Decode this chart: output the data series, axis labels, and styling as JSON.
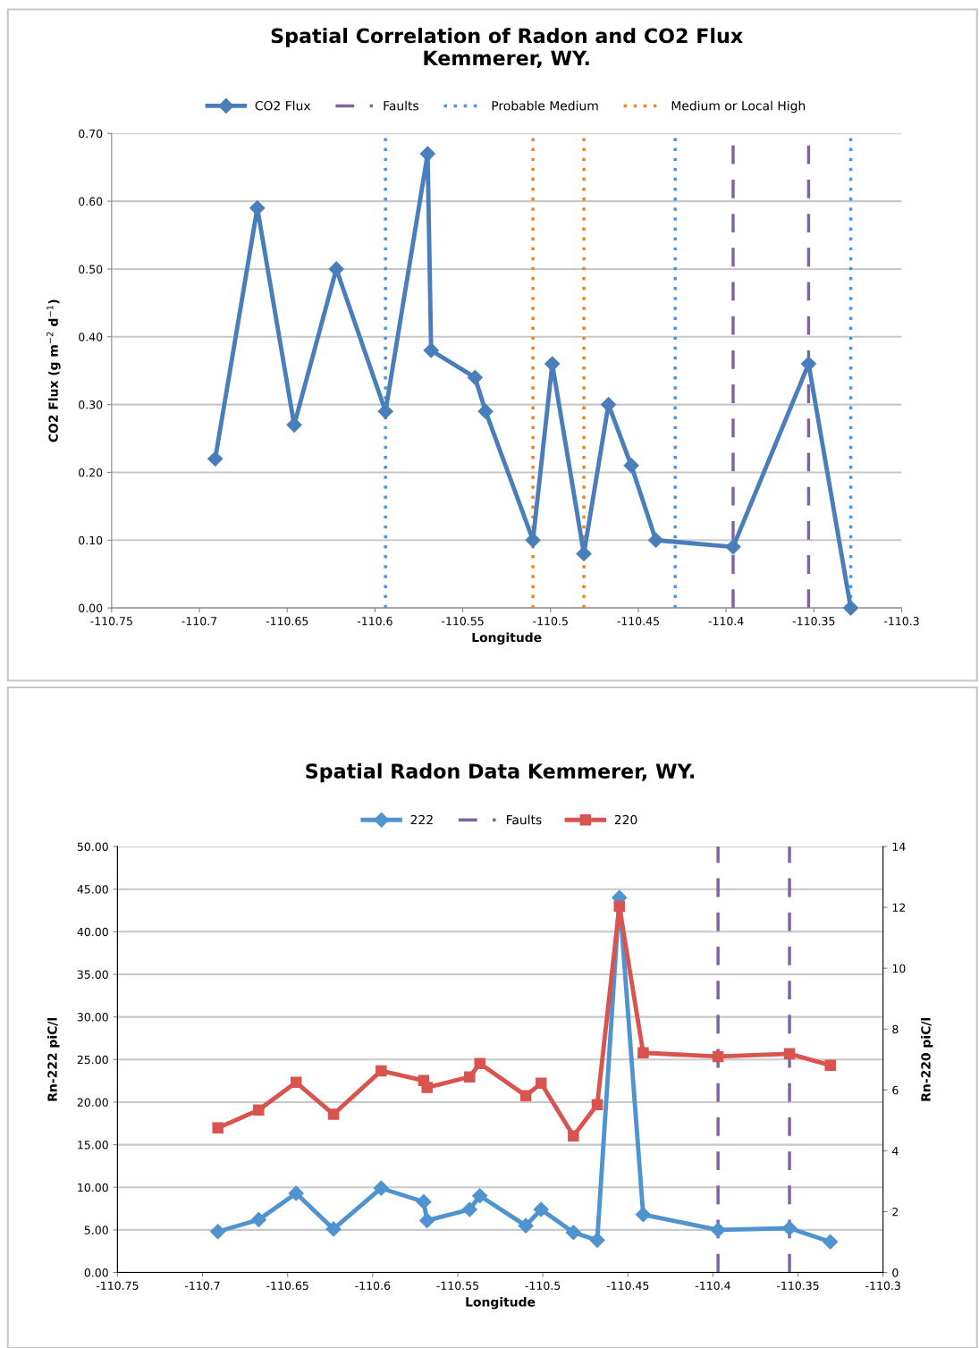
{
  "chart_data": [
    {
      "type": "line",
      "title": "Spatial Correlation of Radon and CO2 Flux\nKemmerer, WY.",
      "xlabel": "Longitude",
      "ylabel": "CO2 Flux (g m$^{−2}$ d$^{−1}$)",
      "x": [
        -110.691,
        -110.667,
        -110.646,
        -110.622,
        -110.594,
        -110.57,
        -110.568,
        -110.543,
        -110.537,
        -110.51,
        -110.499,
        -110.481,
        -110.467,
        -110.454,
        -110.44,
        -110.396,
        -110.353,
        -110.329
      ],
      "series": [
        {
          "name": "CO2 Flux",
          "color": "#4a7ebb",
          "marker": "diamond",
          "values": [
            0.22,
            0.59,
            0.27,
            0.5,
            0.29,
            0.67,
            0.38,
            0.34,
            0.29,
            0.1,
            0.36,
            0.08,
            0.3,
            0.21,
            0.1,
            0.09,
            0.36,
            0.0
          ]
        }
      ],
      "ref_lines": [
        {
          "axis": "x",
          "value": -110.396,
          "label": "Faults",
          "color": "#8064a2",
          "line_style": "dashed"
        },
        {
          "axis": "x",
          "value": -110.353,
          "color": "#8064a2",
          "line_style": "dashed"
        },
        {
          "axis": "x",
          "value": -110.594,
          "label": "Probable Medium",
          "color": "#4f93e0",
          "line_style": "dotted"
        },
        {
          "axis": "x",
          "value": -110.429,
          "color": "#4f93e0",
          "line_style": "dotted"
        },
        {
          "axis": "x",
          "value": -110.329,
          "color": "#4f93e0",
          "line_style": "dotted"
        },
        {
          "axis": "x",
          "value": -110.51,
          "label": "Medium or Local High",
          "color": "#f58220",
          "line_style": "dotted"
        },
        {
          "axis": "x",
          "value": -110.481,
          "color": "#f58220",
          "line_style": "dotted"
        }
      ],
      "xlim": [
        -110.75,
        -110.3
      ],
      "xticks": [
        {
          "value": -110.75,
          "label": "-110.75"
        },
        {
          "value": -110.7,
          "label": "-110.7"
        },
        {
          "value": -110.65,
          "label": "-110.65"
        },
        {
          "value": -110.6,
          "label": "-110.6"
        },
        {
          "value": -110.55,
          "label": "-110.55"
        },
        {
          "value": -110.5,
          "label": "-110.5"
        },
        {
          "value": -110.45,
          "label": "-110.45"
        },
        {
          "value": -110.4,
          "label": "-110.4"
        },
        {
          "value": -110.35,
          "label": "-110.35"
        },
        {
          "value": -110.3,
          "label": "-110.3"
        }
      ],
      "ylim": [
        0,
        0.7
      ],
      "yticks": [
        {
          "value": 0,
          "label": "0.00"
        },
        {
          "value": 0.1,
          "label": "0.10"
        },
        {
          "value": 0.2,
          "label": "0.20"
        },
        {
          "value": 0.3,
          "label": "0.30"
        },
        {
          "value": 0.4,
          "label": "0.40"
        },
        {
          "value": 0.5,
          "label": "0.50"
        },
        {
          "value": 0.6,
          "label": "0.60"
        },
        {
          "value": 0.7,
          "label": "0.70"
        }
      ],
      "grid": "y",
      "legend": "top"
    },
    {
      "type": "line",
      "title": "Spatial Radon Data Kemmerer, WY.",
      "xlabel": "Longitude",
      "ylabel": "Rn-222 piC/l",
      "y2label": "Rn-220 piC/l",
      "x": [
        -110.691,
        -110.667,
        -110.645,
        -110.623,
        -110.595,
        -110.57,
        -110.568,
        -110.543,
        -110.537,
        -110.51,
        -110.501,
        -110.482,
        -110.468,
        -110.455,
        -110.441,
        -110.397,
        -110.355,
        -110.331
      ],
      "series": [
        {
          "name": "222",
          "color": "#4f93d0",
          "marker": "diamond",
          "values": [
            4.8,
            6.2,
            9.3,
            5.1,
            9.9,
            8.3,
            6.1,
            7.4,
            9.0,
            5.5,
            7.4,
            4.7,
            3.8,
            44.0,
            6.8,
            5.0,
            5.2,
            3.6
          ]
        },
        {
          "name": "220",
          "color": "#d9534f",
          "marker": "square",
          "axis": "y2",
          "values": [
            4.75,
            5.34,
            6.25,
            5.2,
            6.63,
            6.31,
            6.08,
            6.43,
            6.87,
            5.81,
            6.22,
            4.49,
            5.52,
            12.03,
            7.22,
            7.1,
            7.19,
            6.81
          ]
        }
      ],
      "ref_lines": [
        {
          "axis": "x",
          "value": -110.397,
          "label": "Faults",
          "color": "#8064a2",
          "line_style": "dashed"
        },
        {
          "axis": "x",
          "value": -110.355,
          "color": "#8064a2",
          "line_style": "dashed"
        }
      ],
      "xlim": [
        -110.75,
        -110.3
      ],
      "xticks": [
        {
          "value": -110.75,
          "label": "-110.75"
        },
        {
          "value": -110.7,
          "label": "-110.7"
        },
        {
          "value": -110.65,
          "label": "-110.65"
        },
        {
          "value": -110.6,
          "label": "-110.6"
        },
        {
          "value": -110.55,
          "label": "-110.55"
        },
        {
          "value": -110.5,
          "label": "-110.5"
        },
        {
          "value": -110.45,
          "label": "-110.45"
        },
        {
          "value": -110.4,
          "label": "-110.4"
        },
        {
          "value": -110.35,
          "label": "-110.35"
        },
        {
          "value": -110.3,
          "label": "-110.3"
        }
      ],
      "ylim": [
        0,
        50
      ],
      "yticks": [
        {
          "value": 0,
          "label": "0.00"
        },
        {
          "value": 5,
          "label": "5.00"
        },
        {
          "value": 10,
          "label": "10.00"
        },
        {
          "value": 15,
          "label": "15.00"
        },
        {
          "value": 20,
          "label": "20.00"
        },
        {
          "value": 25,
          "label": "25.00"
        },
        {
          "value": 30,
          "label": "30.00"
        },
        {
          "value": 35,
          "label": "35.00"
        },
        {
          "value": 40,
          "label": "40.00"
        },
        {
          "value": 45,
          "label": "45.00"
        },
        {
          "value": 50,
          "label": "50.00"
        }
      ],
      "y2lim": [
        0,
        14
      ],
      "y2ticks": [
        0,
        2,
        4,
        6,
        8,
        10,
        12,
        14
      ],
      "grid": "y",
      "legend": "top"
    }
  ]
}
